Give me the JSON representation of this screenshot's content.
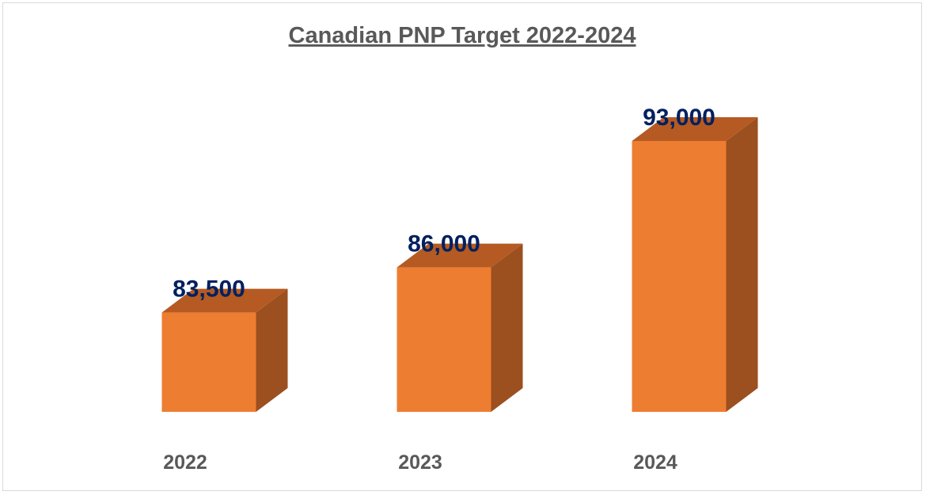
{
  "chart_data": {
    "type": "bar",
    "title": "Canadian PNP Target  2022-2024",
    "xlabel": "",
    "ylabel": "",
    "categories": [
      "2022",
      "2023",
      "2024"
    ],
    "values": [
      83500,
      86000,
      93000
    ],
    "data_labels": [
      "83,500",
      "86,000",
      "93,000"
    ],
    "ylim": [
      78000,
      95000
    ],
    "grid": false,
    "legend": "none",
    "style": "3d-column",
    "colors": {
      "bar_front": "#ED7D31",
      "bar_top": "#B55A22",
      "bar_side": "#9C4F1F",
      "data_label": "#002060",
      "title": "#595959",
      "category_label": "#595959"
    }
  }
}
